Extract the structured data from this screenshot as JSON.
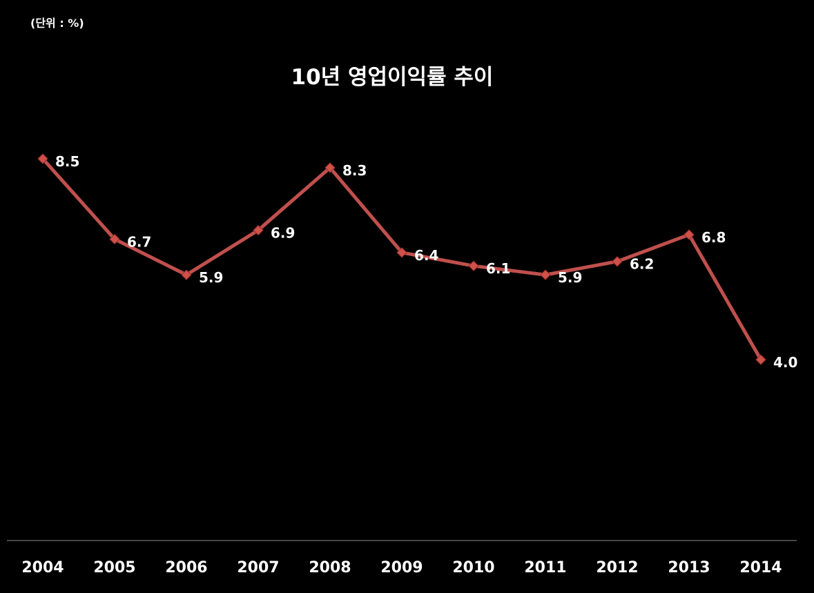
{
  "unit_label": "(단위 : %)",
  "chart_data": {
    "type": "line",
    "title": "10년 영업이익률 추이",
    "xlabel": "",
    "ylabel": "",
    "categories": [
      "2004",
      "2005",
      "2006",
      "2007",
      "2008",
      "2009",
      "2010",
      "2011",
      "2012",
      "2013",
      "2014"
    ],
    "series": [
      {
        "values": [
          8.5,
          6.7,
          5.9,
          6.9,
          8.3,
          6.4,
          6.1,
          5.9,
          6.2,
          6.8,
          4.0
        ],
        "labels": [
          "8.5",
          "6.7",
          "5.9",
          "6.9",
          "8.3",
          "6.4",
          "6.1",
          "5.9",
          "6.2",
          "6.8",
          "4.0"
        ],
        "color": "#c0504d"
      }
    ],
    "ylim": [
      0,
      10
    ],
    "grid": false,
    "legend": "none",
    "marker": "diamond"
  }
}
